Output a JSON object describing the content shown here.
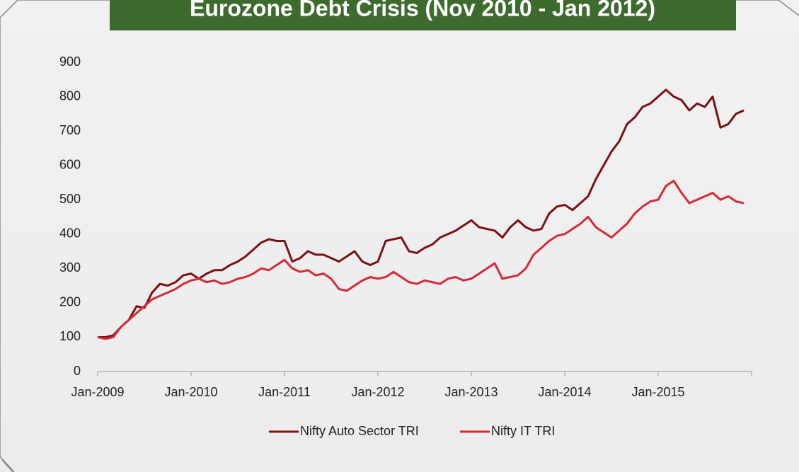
{
  "chart_data": {
    "type": "line",
    "title": "Eurozone Debt Crisis (Nov 2010 - Jan 2012)",
    "categories": [
      "Jan-2009",
      null,
      null,
      null,
      null,
      null,
      null,
      null,
      null,
      null,
      null,
      null,
      "Jan-2010",
      null,
      null,
      null,
      null,
      null,
      null,
      null,
      null,
      null,
      null,
      null,
      "Jan-2011",
      null,
      null,
      null,
      null,
      null,
      null,
      null,
      null,
      null,
      null,
      null,
      "Jan-2012",
      null,
      null,
      null,
      null,
      null,
      null,
      null,
      null,
      null,
      null,
      null,
      "Jan-2013",
      null,
      null,
      null,
      null,
      null,
      null,
      null,
      null,
      null,
      null,
      null,
      "Jan-2014",
      null,
      null,
      null,
      null,
      null,
      null,
      null,
      null,
      null,
      null,
      null,
      "Jan-2015",
      null,
      null,
      null,
      null,
      null,
      null,
      null,
      null,
      null,
      null,
      null
    ],
    "series": [
      {
        "name": "Nifty Auto Sector TRI",
        "color": "#7b1113",
        "values": [
          100,
          100,
          105,
          130,
          150,
          190,
          185,
          230,
          255,
          250,
          260,
          280,
          285,
          270,
          285,
          295,
          295,
          310,
          320,
          335,
          355,
          375,
          385,
          380,
          380,
          320,
          330,
          350,
          340,
          340,
          330,
          320,
          335,
          350,
          320,
          310,
          320,
          380,
          385,
          390,
          350,
          345,
          360,
          370,
          390,
          400,
          410,
          425,
          440,
          420,
          415,
          410,
          390,
          420,
          440,
          420,
          410,
          415,
          460,
          480,
          485,
          470,
          490,
          510,
          560,
          600,
          640,
          670,
          720,
          740,
          770,
          780,
          800,
          820,
          800,
          790,
          760,
          780,
          770,
          800,
          710,
          720,
          750,
          760
        ]
      },
      {
        "name": "Nifty IT TRI",
        "color": "#d42b36",
        "values": [
          100,
          95,
          100,
          130,
          150,
          170,
          190,
          210,
          220,
          230,
          240,
          255,
          265,
          270,
          260,
          265,
          255,
          260,
          270,
          275,
          285,
          300,
          295,
          310,
          325,
          300,
          290,
          295,
          280,
          285,
          270,
          240,
          235,
          250,
          265,
          275,
          270,
          275,
          290,
          275,
          260,
          255,
          265,
          260,
          255,
          270,
          275,
          265,
          270,
          285,
          300,
          315,
          270,
          275,
          280,
          300,
          340,
          360,
          380,
          395,
          400,
          415,
          430,
          450,
          420,
          405,
          390,
          410,
          430,
          460,
          480,
          495,
          500,
          540,
          555,
          520,
          490,
          500,
          510,
          520,
          500,
          510,
          495,
          490
        ]
      }
    ],
    "ylim": [
      0,
      900
    ],
    "yticks": [
      0,
      100,
      200,
      300,
      400,
      500,
      600,
      700,
      800,
      900
    ],
    "grid": false,
    "legend": "bottom"
  }
}
